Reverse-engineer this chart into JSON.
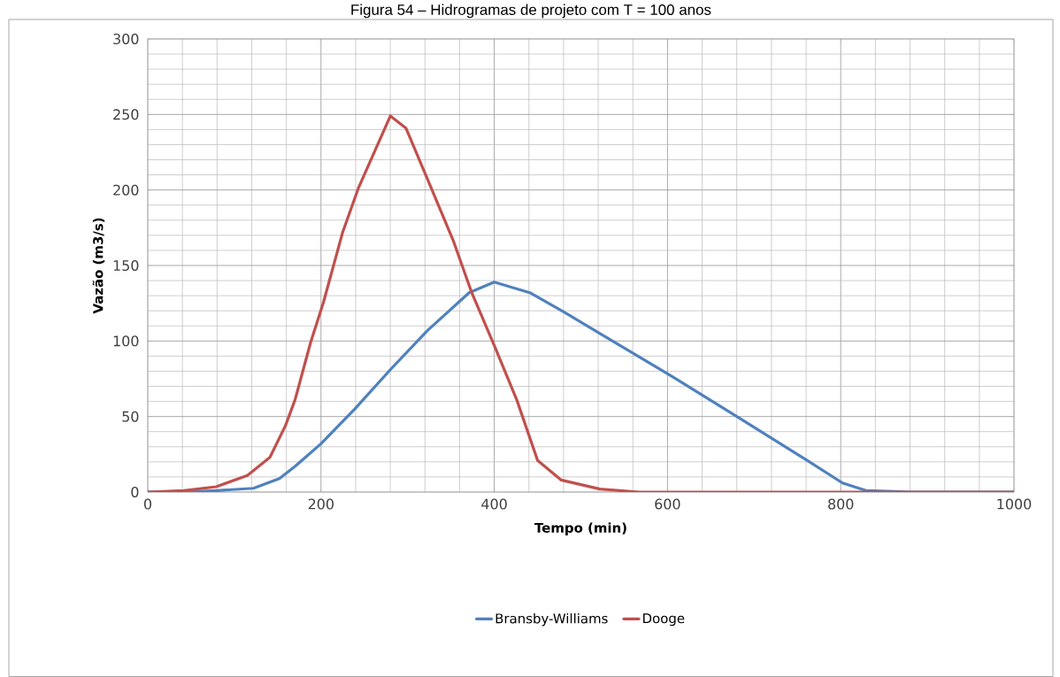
{
  "chart_data": {
    "type": "line",
    "title": "Figura 54 – Hidrogramas de projeto com T = 100 anos",
    "xlabel": "Tempo (min)",
    "ylabel": "Vazão  (m3/s)",
    "xlim": [
      0,
      1000
    ],
    "xticks": [
      0,
      200,
      400,
      600,
      800,
      1000
    ],
    "ylim": [
      0,
      300
    ],
    "yticks": [
      0,
      50,
      100,
      150,
      200,
      250,
      300
    ],
    "grid": true,
    "legend": "bottom",
    "marker": "none",
    "line_style": "solid",
    "series": [
      {
        "name": "Bransby-Williams",
        "color": "#4f81bd",
        "x": [
          0,
          42,
          80,
          122,
          152,
          170,
          200,
          239,
          280,
          323,
          371,
          400,
          441,
          481,
          522,
          601,
          680,
          761,
          802,
          829,
          880,
          1000
        ],
        "values": [
          0,
          0,
          1,
          2.5,
          9,
          17,
          32,
          55,
          81,
          107,
          132,
          139,
          132,
          119,
          105,
          78,
          50,
          21,
          6,
          1,
          0,
          0
        ]
      },
      {
        "name": "Dooge",
        "color": "#c0504d",
        "x": [
          0,
          42,
          79,
          115,
          141,
          159,
          170,
          188,
          203,
          225,
          243,
          280,
          298,
          323,
          353,
          374,
          400,
          426,
          450,
          477,
          522,
          567,
          1000
        ],
        "values": [
          0,
          1,
          3.5,
          11,
          23,
          44,
          61,
          99,
          126,
          172,
          201,
          249,
          241,
          207,
          166,
          132,
          97,
          61,
          21,
          8,
          2,
          0,
          0
        ]
      }
    ]
  }
}
